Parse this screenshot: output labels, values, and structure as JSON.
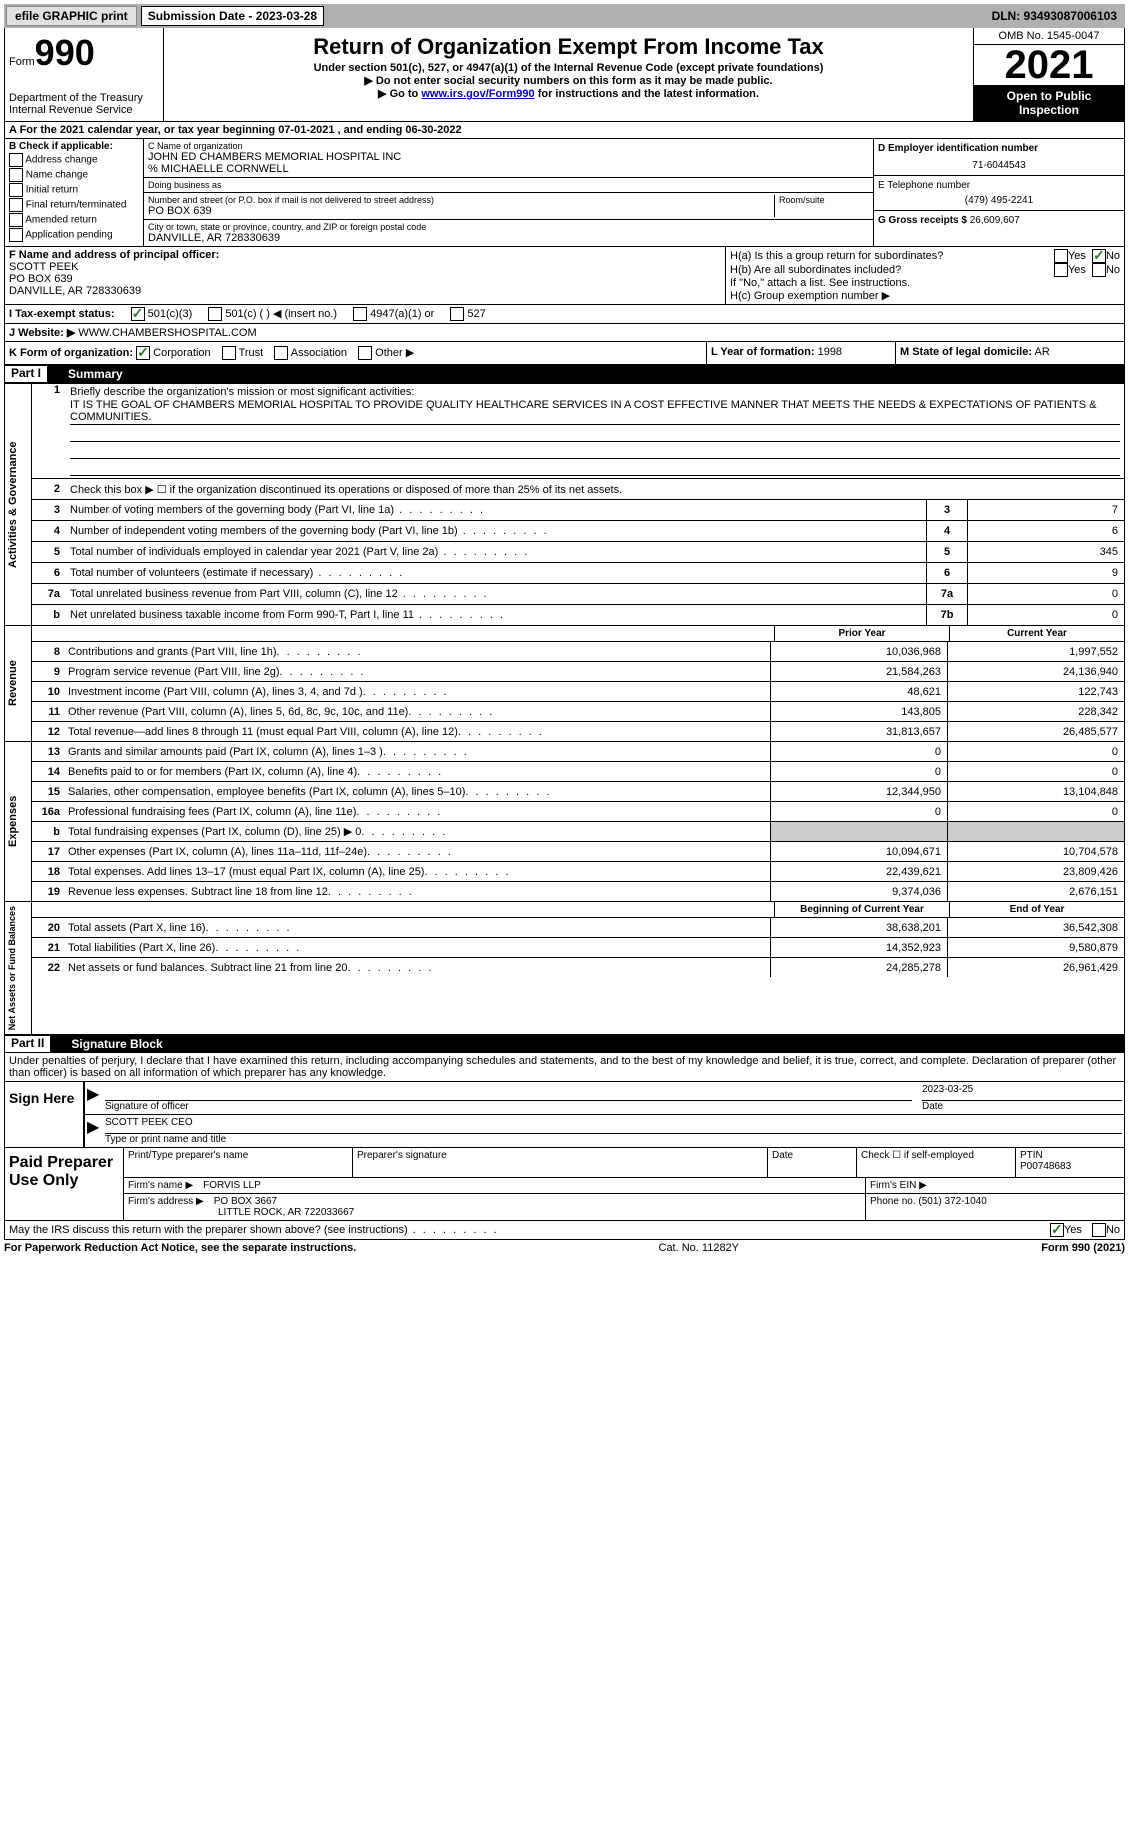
{
  "topbar": {
    "efile": "efile GRAPHIC print",
    "submission_label": "Submission Date - 2023-03-28",
    "dln": "DLN: 93493087006103"
  },
  "header": {
    "form_word": "Form",
    "form_number": "990",
    "dept": "Department of the Treasury",
    "irs": "Internal Revenue Service",
    "title": "Return of Organization Exempt From Income Tax",
    "subtitle": "Under section 501(c), 527, or 4947(a)(1) of the Internal Revenue Code (except private foundations)",
    "note1": "▶ Do not enter social security numbers on this form as it may be made public.",
    "note2_pre": "▶ Go to ",
    "note2_link": "www.irs.gov/Form990",
    "note2_post": " for instructions and the latest information.",
    "omb": "OMB No. 1545-0047",
    "year": "2021",
    "open": "Open to Public Inspection"
  },
  "lineA": "A For the 2021 calendar year, or tax year beginning 07-01-2021   , and ending 06-30-2022",
  "colB": {
    "title": "B Check if applicable:",
    "opts": [
      "Address change",
      "Name change",
      "Initial return",
      "Final return/terminated",
      "Amended return",
      "Application pending"
    ]
  },
  "colC": {
    "name_lbl": "C Name of organization",
    "name": "JOHN ED CHAMBERS MEMORIAL HOSPITAL INC",
    "care_of": "% MICHAELLE CORNWELL",
    "dba_lbl": "Doing business as",
    "street_lbl": "Number and street (or P.O. box if mail is not delivered to street address)",
    "room_lbl": "Room/suite",
    "street": "PO BOX 639",
    "city_lbl": "City or town, state or province, country, and ZIP or foreign postal code",
    "city": "DANVILLE, AR  728330639"
  },
  "colD": {
    "ein_lbl": "D Employer identification number",
    "ein": "71-6044543",
    "tel_lbl": "E Telephone number",
    "tel": "(479) 495-2241",
    "gross_lbl": "G Gross receipts $",
    "gross": "26,609,607"
  },
  "blockF": {
    "lbl": "F Name and address of principal officer:",
    "name": "SCOTT PEEK",
    "addr1": "PO BOX 639",
    "addr2": "DANVILLE, AR  728330639"
  },
  "blockH": {
    "ha": "H(a)  Is this a group return for subordinates?",
    "hb": "H(b)  Are all subordinates included?",
    "hb_note": "If \"No,\" attach a list. See instructions.",
    "hc": "H(c)  Group exemption number ▶"
  },
  "lineI": {
    "lbl": "I   Tax-exempt status:",
    "opt1": "501(c)(3)",
    "opt2": "501(c) (  ) ◀ (insert no.)",
    "opt3": "4947(a)(1) or",
    "opt4": "527"
  },
  "lineJ": {
    "lbl": "J   Website: ▶",
    "val": "WWW.CHAMBERSHOSPITAL.COM"
  },
  "lineK": {
    "lbl": "K Form of organization:",
    "corp": "Corporation",
    "trust": "Trust",
    "assoc": "Association",
    "other": "Other ▶",
    "l_lbl": "L Year of formation:",
    "l_val": "1998",
    "m_lbl": "M State of legal domicile:",
    "m_val": "AR"
  },
  "part1": {
    "part": "Part I",
    "title": "Summary"
  },
  "summary": {
    "side1": "Activities & Governance",
    "l1_lbl": "Briefly describe the organization's mission or most significant activities:",
    "l1_val": "IT IS THE GOAL OF CHAMBERS MEMORIAL HOSPITAL TO PROVIDE QUALITY HEALTHCARE SERVICES IN A COST EFFECTIVE MANNER THAT MEETS THE NEEDS & EXPECTATIONS OF PATIENTS & COMMUNITIES.",
    "l2": "Check this box ▶ ☐ if the organization discontinued its operations or disposed of more than 25% of its net assets.",
    "l3": "Number of voting members of the governing body (Part VI, line 1a)",
    "l3v": "7",
    "l4": "Number of independent voting members of the governing body (Part VI, line 1b)",
    "l4v": "6",
    "l5": "Total number of individuals employed in calendar year 2021 (Part V, line 2a)",
    "l5v": "345",
    "l6": "Total number of volunteers (estimate if necessary)",
    "l6v": "9",
    "l7a": "Total unrelated business revenue from Part VIII, column (C), line 12",
    "l7av": "0",
    "l7b": "Net unrelated business taxable income from Form 990-T, Part I, line 11",
    "l7bv": "0"
  },
  "fin_headers": {
    "py": "Prior Year",
    "cy": "Current Year",
    "bcy": "Beginning of Current Year",
    "eoy": "End of Year"
  },
  "revenue": {
    "side": "Revenue",
    "rows": [
      {
        "n": "8",
        "d": "Contributions and grants (Part VIII, line 1h)",
        "py": "10,036,968",
        "cy": "1,997,552"
      },
      {
        "n": "9",
        "d": "Program service revenue (Part VIII, line 2g)",
        "py": "21,584,263",
        "cy": "24,136,940"
      },
      {
        "n": "10",
        "d": "Investment income (Part VIII, column (A), lines 3, 4, and 7d )",
        "py": "48,621",
        "cy": "122,743"
      },
      {
        "n": "11",
        "d": "Other revenue (Part VIII, column (A), lines 5, 6d, 8c, 9c, 10c, and 11e)",
        "py": "143,805",
        "cy": "228,342"
      },
      {
        "n": "12",
        "d": "Total revenue—add lines 8 through 11 (must equal Part VIII, column (A), line 12)",
        "py": "31,813,657",
        "cy": "26,485,577"
      }
    ]
  },
  "expenses": {
    "side": "Expenses",
    "rows": [
      {
        "n": "13",
        "d": "Grants and similar amounts paid (Part IX, column (A), lines 1–3 )",
        "py": "0",
        "cy": "0"
      },
      {
        "n": "14",
        "d": "Benefits paid to or for members (Part IX, column (A), line 4)",
        "py": "0",
        "cy": "0"
      },
      {
        "n": "15",
        "d": "Salaries, other compensation, employee benefits (Part IX, column (A), lines 5–10)",
        "py": "12,344,950",
        "cy": "13,104,848"
      },
      {
        "n": "16a",
        "d": "Professional fundraising fees (Part IX, column (A), line 11e)",
        "py": "0",
        "cy": "0"
      },
      {
        "n": "b",
        "d": "Total fundraising expenses (Part IX, column (D), line 25) ▶ 0",
        "py": "",
        "cy": "",
        "shade": true
      },
      {
        "n": "17",
        "d": "Other expenses (Part IX, column (A), lines 11a–11d, 11f–24e)",
        "py": "10,094,671",
        "cy": "10,704,578"
      },
      {
        "n": "18",
        "d": "Total expenses. Add lines 13–17 (must equal Part IX, column (A), line 25)",
        "py": "22,439,621",
        "cy": "23,809,426"
      },
      {
        "n": "19",
        "d": "Revenue less expenses. Subtract line 18 from line 12",
        "py": "9,374,036",
        "cy": "2,676,151"
      }
    ]
  },
  "netassets": {
    "side": "Net Assets or Fund Balances",
    "rows": [
      {
        "n": "20",
        "d": "Total assets (Part X, line 16)",
        "py": "38,638,201",
        "cy": "36,542,308"
      },
      {
        "n": "21",
        "d": "Total liabilities (Part X, line 26)",
        "py": "14,352,923",
        "cy": "9,580,879"
      },
      {
        "n": "22",
        "d": "Net assets or fund balances. Subtract line 21 from line 20",
        "py": "24,285,278",
        "cy": "26,961,429"
      }
    ]
  },
  "part2": {
    "part": "Part II",
    "title": "Signature Block"
  },
  "sig": {
    "decl": "Under penalties of perjury, I declare that I have examined this return, including accompanying schedules and statements, and to the best of my knowledge and belief, it is true, correct, and complete. Declaration of preparer (other than officer) is based on all information of which preparer has any knowledge.",
    "sign_here": "Sign Here",
    "sig_officer": "Signature of officer",
    "date_lbl": "Date",
    "date_val": "2023-03-25",
    "name_title": "SCOTT PEEK CEO",
    "type_name": "Type or print name and title"
  },
  "prep": {
    "title": "Paid Preparer Use Only",
    "h1": "Print/Type preparer's name",
    "h2": "Preparer's signature",
    "h3": "Date",
    "h4_chk": "Check ☐ if self-employed",
    "h4_ptin_lbl": "PTIN",
    "h4_ptin": "P00748683",
    "firm_name_lbl": "Firm's name    ▶",
    "firm_name": "FORVIS LLP",
    "firm_ein_lbl": "Firm's EIN ▶",
    "firm_addr_lbl": "Firm's address ▶",
    "firm_addr1": "PO BOX 3667",
    "firm_addr2": "LITTLE ROCK, AR  722033667",
    "phone_lbl": "Phone no.",
    "phone": "(501) 372-1040"
  },
  "may_irs": "May the IRS discuss this return with the preparer shown above? (see instructions)",
  "footer": {
    "left": "For Paperwork Reduction Act Notice, see the separate instructions.",
    "mid": "Cat. No. 11282Y",
    "right": "Form 990 (2021)"
  }
}
